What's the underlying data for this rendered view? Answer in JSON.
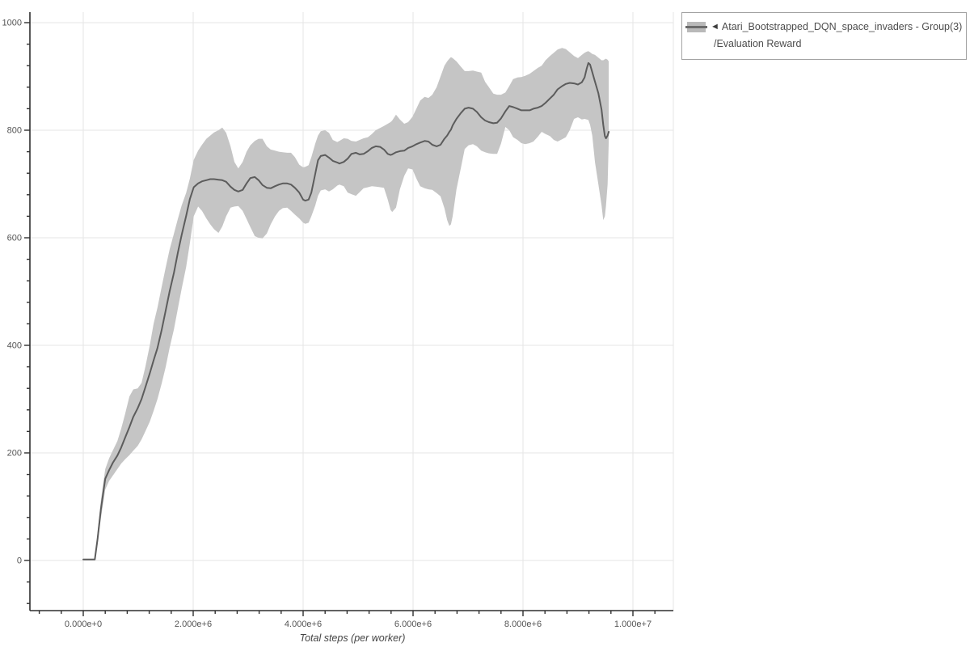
{
  "page": {
    "background": "#ffffff"
  },
  "legend": {
    "marker_triangle": "◄",
    "series_name": "Atari_Bootstrapped_DQN_space_invaders - Group(3)",
    "metric_name": "/Evaluation Reward"
  },
  "chart_data": {
    "type": "line",
    "title": "",
    "xlabel": "Total steps (per worker)",
    "ylabel": "",
    "x_tick_labels": [
      "0.000e+0",
      "2.000e+6",
      "4.000e+6",
      "6.000e+6",
      "8.000e+6",
      "1.000e+7"
    ],
    "x_tick_values_millions": [
      0,
      2,
      4,
      6,
      8,
      10
    ],
    "x_minor_step_millions": 0.4,
    "y_tick_labels": [
      "0",
      "200",
      "400",
      "600",
      "800",
      "1000"
    ],
    "y_tick_values": [
      0,
      200,
      400,
      600,
      800,
      1000
    ],
    "y_minor_step": 40,
    "xlim_millions": [
      -0.97,
      10.74
    ],
    "ylim": [
      -93,
      1020
    ],
    "grid": true,
    "legend_position": "top-right",
    "colors": {
      "line": "#5c5c5c",
      "band": "#c5c5c5",
      "grid": "#e5e5e5",
      "axis": "#2f2f2f",
      "tick_label": "#555555",
      "axis_title": "#444444"
    },
    "series": [
      {
        "name": "Atari_Bootstrapped_DQN_space_invaders - Group(3)/Evaluation Reward",
        "x_unit": "steps (millions)",
        "points_format": [
          "x_millions",
          "mean",
          "lower_band",
          "upper_band"
        ],
        "points": [
          [
            0.0,
            2,
            2,
            2
          ],
          [
            0.1,
            2,
            2,
            2
          ],
          [
            0.21,
            2,
            2,
            2
          ],
          [
            0.26,
            40,
            30,
            52
          ],
          [
            0.32,
            95,
            78,
            112
          ],
          [
            0.4,
            152,
            132,
            170
          ],
          [
            0.47,
            168,
            148,
            190
          ],
          [
            0.54,
            182,
            158,
            205
          ],
          [
            0.62,
            195,
            170,
            222
          ],
          [
            0.69,
            210,
            180,
            245
          ],
          [
            0.76,
            228,
            188,
            272
          ],
          [
            0.84,
            248,
            196,
            305
          ],
          [
            0.91,
            267,
            204,
            318
          ],
          [
            0.99,
            283,
            213,
            320
          ],
          [
            1.06,
            300,
            225,
            330
          ],
          [
            1.13,
            322,
            240,
            360
          ],
          [
            1.21,
            348,
            258,
            400
          ],
          [
            1.28,
            372,
            278,
            440
          ],
          [
            1.35,
            395,
            300,
            470
          ],
          [
            1.43,
            430,
            330,
            510
          ],
          [
            1.5,
            465,
            360,
            545
          ],
          [
            1.57,
            500,
            395,
            578
          ],
          [
            1.65,
            535,
            430,
            608
          ],
          [
            1.72,
            572,
            468,
            635
          ],
          [
            1.79,
            605,
            505,
            660
          ],
          [
            1.87,
            640,
            545,
            683
          ],
          [
            1.94,
            672,
            590,
            710
          ],
          [
            2.01,
            694,
            640,
            745
          ],
          [
            2.09,
            701,
            658,
            762
          ],
          [
            2.16,
            705,
            650,
            773
          ],
          [
            2.24,
            707,
            636,
            784
          ],
          [
            2.31,
            709,
            625,
            790
          ],
          [
            2.38,
            709,
            616,
            796
          ],
          [
            2.46,
            708,
            609,
            800
          ],
          [
            2.53,
            707,
            621,
            805
          ],
          [
            2.6,
            704,
            640,
            795
          ],
          [
            2.68,
            695,
            656,
            770
          ],
          [
            2.75,
            689,
            658,
            741
          ],
          [
            2.82,
            686,
            659,
            729
          ],
          [
            2.9,
            689,
            650,
            741
          ],
          [
            2.97,
            701,
            635,
            760
          ],
          [
            3.04,
            711,
            620,
            772
          ],
          [
            3.12,
            713,
            603,
            780
          ],
          [
            3.19,
            707,
            600,
            784
          ],
          [
            3.26,
            698,
            599,
            784
          ],
          [
            3.34,
            693,
            608,
            770
          ],
          [
            3.41,
            692,
            625,
            764
          ],
          [
            3.49,
            696,
            640,
            762
          ],
          [
            3.56,
            699,
            650,
            760
          ],
          [
            3.63,
            701,
            655,
            759
          ],
          [
            3.71,
            701,
            656,
            758
          ],
          [
            3.78,
            699,
            650,
            758
          ],
          [
            3.85,
            693,
            643,
            750
          ],
          [
            3.93,
            684,
            636,
            736
          ],
          [
            4.0,
            671,
            628,
            731
          ],
          [
            4.04,
            669,
            626,
            732
          ],
          [
            4.1,
            671,
            628,
            735
          ],
          [
            4.15,
            684,
            640,
            750
          ],
          [
            4.22,
            719,
            660,
            775
          ],
          [
            4.27,
            744,
            678,
            790
          ],
          [
            4.32,
            752,
            688,
            798
          ],
          [
            4.4,
            754,
            690,
            800
          ],
          [
            4.47,
            749,
            686,
            795
          ],
          [
            4.54,
            743,
            690,
            782
          ],
          [
            4.62,
            740,
            697,
            778
          ],
          [
            4.66,
            738,
            699,
            780
          ],
          [
            4.74,
            741,
            696,
            785
          ],
          [
            4.81,
            747,
            684,
            784
          ],
          [
            4.88,
            756,
            681,
            780
          ],
          [
            4.96,
            758,
            678,
            779
          ],
          [
            5.03,
            755,
            685,
            782
          ],
          [
            5.1,
            756,
            692,
            785
          ],
          [
            5.18,
            761,
            694,
            787
          ],
          [
            5.25,
            767,
            696,
            793
          ],
          [
            5.32,
            770,
            695,
            800
          ],
          [
            5.4,
            769,
            694,
            804
          ],
          [
            5.47,
            764,
            693,
            808
          ],
          [
            5.54,
            756,
            671,
            812
          ],
          [
            5.59,
            754,
            652,
            815
          ],
          [
            5.62,
            755,
            648,
            818
          ],
          [
            5.69,
            759,
            656,
            829
          ],
          [
            5.76,
            761,
            690,
            820
          ],
          [
            5.84,
            762,
            715,
            812
          ],
          [
            5.91,
            767,
            729,
            815
          ],
          [
            5.99,
            770,
            727,
            825
          ],
          [
            6.06,
            774,
            710,
            840
          ],
          [
            6.13,
            777,
            696,
            855
          ],
          [
            6.21,
            780,
            692,
            862
          ],
          [
            6.28,
            779,
            690,
            860
          ],
          [
            6.35,
            773,
            689,
            866
          ],
          [
            6.43,
            770,
            683,
            880
          ],
          [
            6.5,
            773,
            677,
            900
          ],
          [
            6.57,
            784,
            655,
            920
          ],
          [
            6.62,
            790,
            633,
            928
          ],
          [
            6.66,
            797,
            622,
            933
          ],
          [
            6.69,
            801,
            625,
            936
          ],
          [
            6.72,
            809,
            640,
            934
          ],
          [
            6.79,
            821,
            690,
            928
          ],
          [
            6.87,
            832,
            730,
            918
          ],
          [
            6.94,
            840,
            765,
            910
          ],
          [
            7.01,
            842,
            772,
            910
          ],
          [
            7.09,
            840,
            774,
            911
          ],
          [
            7.16,
            834,
            770,
            909
          ],
          [
            7.24,
            824,
            762,
            907
          ],
          [
            7.31,
            818,
            759,
            890
          ],
          [
            7.38,
            815,
            757,
            880
          ],
          [
            7.46,
            813,
            756,
            868
          ],
          [
            7.53,
            814,
            756,
            866
          ],
          [
            7.6,
            822,
            775,
            866
          ],
          [
            7.68,
            835,
            806,
            870
          ],
          [
            7.75,
            845,
            800,
            882
          ],
          [
            7.82,
            843,
            787,
            895
          ],
          [
            7.9,
            840,
            782,
            898
          ],
          [
            7.97,
            837,
            776,
            899
          ],
          [
            8.04,
            837,
            774,
            901
          ],
          [
            8.12,
            837,
            776,
            905
          ],
          [
            8.19,
            840,
            779,
            910
          ],
          [
            8.27,
            842,
            788,
            916
          ],
          [
            8.34,
            845,
            797,
            920
          ],
          [
            8.41,
            851,
            793,
            930
          ],
          [
            8.49,
            859,
            789,
            938
          ],
          [
            8.56,
            866,
            782,
            944
          ],
          [
            8.63,
            876,
            779,
            950
          ],
          [
            8.71,
            882,
            783,
            953
          ],
          [
            8.78,
            886,
            787,
            951
          ],
          [
            8.85,
            888,
            800,
            945
          ],
          [
            8.93,
            887,
            821,
            938
          ],
          [
            9.0,
            885,
            824,
            934
          ],
          [
            9.07,
            889,
            820,
            940
          ],
          [
            9.12,
            898,
            821,
            944
          ],
          [
            9.16,
            915,
            820,
            946
          ],
          [
            9.19,
            925,
            819,
            947
          ],
          [
            9.22,
            922,
            810,
            945
          ],
          [
            9.26,
            908,
            790,
            942
          ],
          [
            9.31,
            890,
            740,
            940
          ],
          [
            9.37,
            869,
            700,
            935
          ],
          [
            9.43,
            838,
            660,
            930
          ],
          [
            9.46,
            810,
            633,
            930
          ],
          [
            9.49,
            789,
            640,
            932
          ],
          [
            9.51,
            785,
            660,
            933
          ],
          [
            9.54,
            790,
            700,
            931
          ],
          [
            9.56,
            797,
            780,
            928
          ]
        ]
      }
    ]
  }
}
